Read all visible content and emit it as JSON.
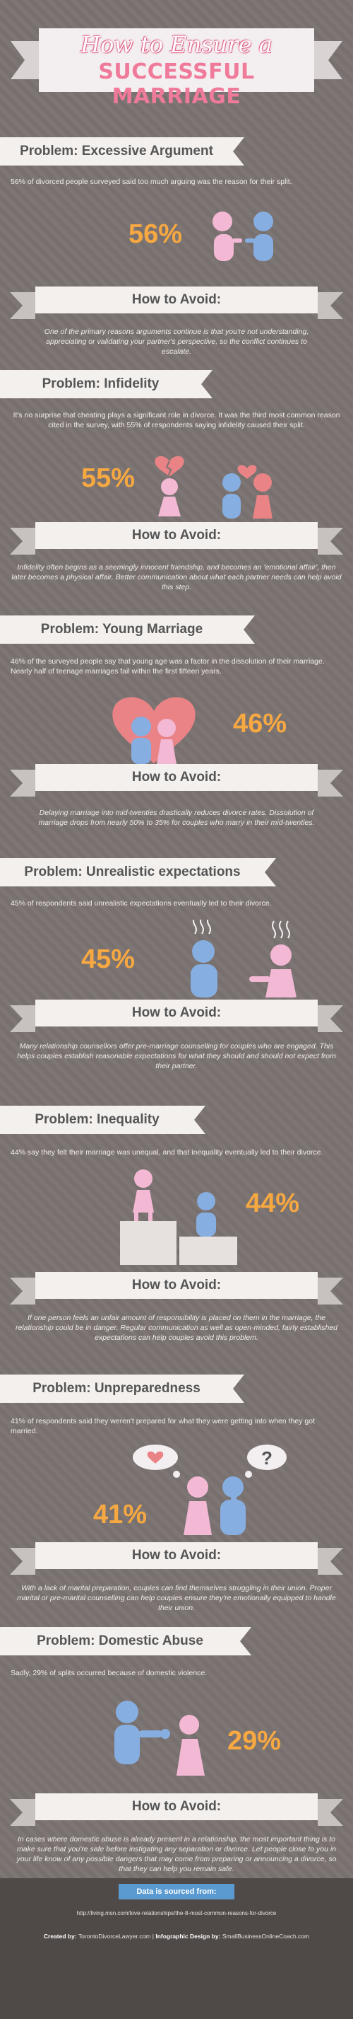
{
  "title": {
    "line1": "How to Ensure a",
    "line2": "SUCCESSFUL MARRIAGE"
  },
  "sections": [
    {
      "problem": "Problem: Excessive Argument",
      "text": "56% of divorced people surveyed said too much arguing was the reason for their split.",
      "percent": "56%",
      "avoid_label": "How to Avoid:",
      "advice": "One of the primary reasons arguments continue is that you're not understanding, appreciating or validating your partner's perspective, so the conflict continues to escalate."
    },
    {
      "problem": "Problem: Infidelity",
      "text": "It's no surprise that cheating plays a significant role in divorce. It was the third most common reason cited in the survey, with 55% of respondents saying infidelity caused their split.",
      "percent": "55%",
      "avoid_label": "How to Avoid:",
      "advice": "Infidelity often begins as a seemingly innocent friendship, and becomes an 'emotional affair', then later becomes a physical affair. Better communication about what each partner needs can help avoid this step."
    },
    {
      "problem": "Problem: Young Marriage",
      "text": "46% of the surveyed people say that young age was a factor in the dissolution of their marriage. Nearly half of teenage marriages fail within the first fifteen years.",
      "percent": "46%",
      "avoid_label": "How to Avoid:",
      "advice": "Delaying marriage into mid-twenties drastically reduces divorce rates. Dissolution of marriage drops from nearly 50% to 35% for couples who marry in their mid-twenties."
    },
    {
      "problem": "Problem: Unrealistic expectations",
      "text": "45% of respondents said unrealistic expectations eventually led to their divorce.",
      "percent": "45%",
      "avoid_label": "How to Avoid:",
      "advice": "Many relationship counsellors offer pre-marriage counselling for couples who are engaged. This helps couples establish reasonable expectations for what they should and should not expect from their partner."
    },
    {
      "problem": "Problem: Inequality",
      "text": "44% say they felt their marriage was unequal, and that inequality eventually led to their divorce.",
      "percent": "44%",
      "avoid_label": "How to Avoid:",
      "advice": "If one person feels an unfair amount of responsibility is placed on them in the marriage, the relationship could be in danger. Regular communication as well as open-minded, fairly established expectations can help couples avoid this problem."
    },
    {
      "problem": "Problem: Unpreparedness",
      "text": "41% of respondents said they weren't prepared for what they were getting into when they got married.",
      "percent": "41%",
      "avoid_label": "How to Avoid:",
      "advice": "With a lack of marital preparation, couples can find themselves struggling in their union. Proper marital or pre-marital counselling can help couples ensure they're emotionally equipped to handle their union."
    },
    {
      "problem": "Problem: Domestic Abuse",
      "text": "Sadly, 29% of splits occurred because of domestic violence.",
      "percent": "29%",
      "avoid_label": "How to Avoid:",
      "advice": "In cases where domestic abuse is already present in a relationship, the most important thing is to make sure that you're safe before instigating any separation or divorce. Let people close to you in your life know of any possible dangers that may come from preparing or announcing a divorce, so that they can help you remain safe."
    }
  ],
  "footer": {
    "source_label": "Data is sourced from:",
    "source_url": "http://living.msn.com/love-relationships/the-8-most-common-reasons-for-divorce",
    "created_by_label": "Created by:",
    "created_by": "TorontoDivorceLawyer.com",
    "separator": "|",
    "design_label": "Infographic Design by:",
    "design_by": "SmallBusinessOnlineCoach.com"
  },
  "colors": {
    "pink": "#f3b8d4",
    "blue": "#86aee0",
    "orange": "#f7a841",
    "coral": "#e98386",
    "background": "#7b7371"
  },
  "icons": [
    "heart-icon",
    "broken-heart-icon",
    "question-icon",
    "steam-icon",
    "podium-icon"
  ]
}
